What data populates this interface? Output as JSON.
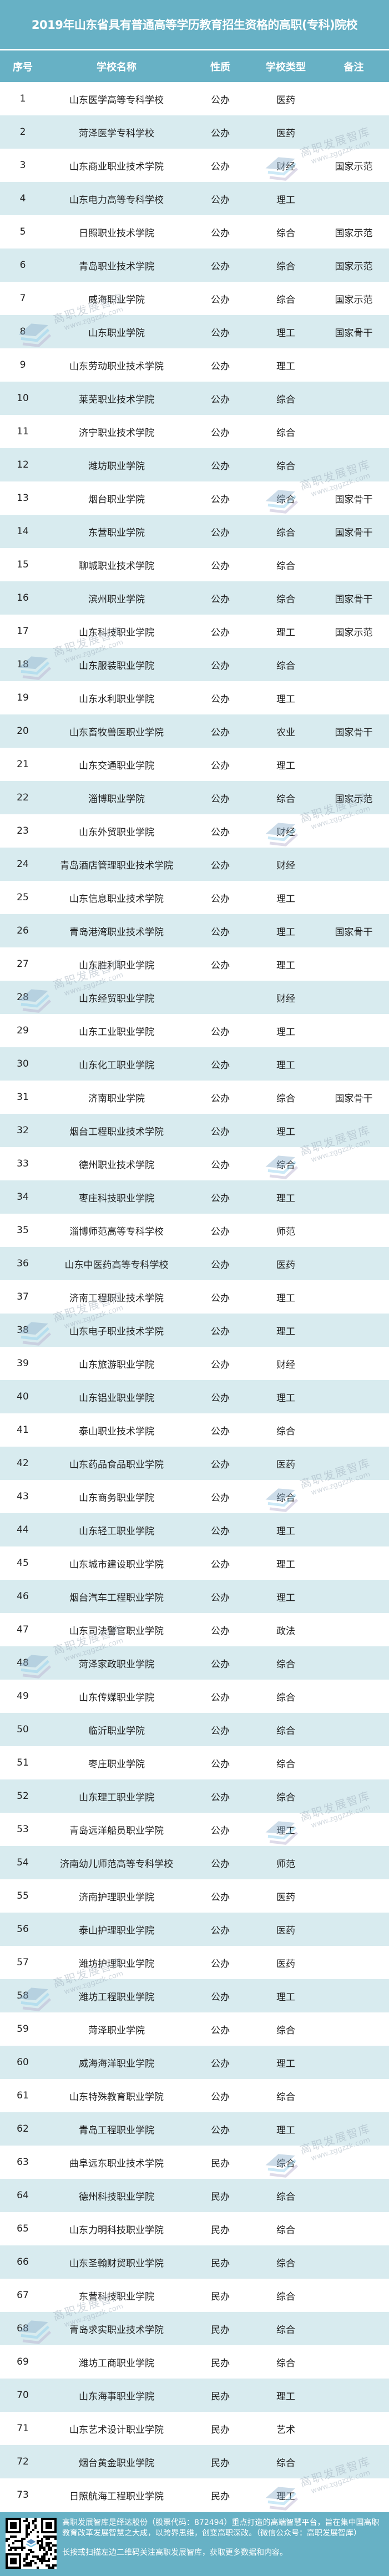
{
  "title": "2019年山东省具有普通高等学历教育招生资格的高职(专科)院校",
  "columns": [
    "序号",
    "学校名称",
    "性质",
    "学校类型",
    "备注"
  ],
  "colors": {
    "header_bg": "#67b1c5",
    "stripe_bg": "#d8ebef",
    "text": "#222222"
  },
  "rows": [
    [
      "1",
      "山东医学高等专科学校",
      "公办",
      "医药",
      ""
    ],
    [
      "2",
      "菏泽医学专科学校",
      "公办",
      "医药",
      ""
    ],
    [
      "3",
      "山东商业职业技术学院",
      "公办",
      "财经",
      "国家示范"
    ],
    [
      "4",
      "山东电力高等专科学校",
      "公办",
      "理工",
      ""
    ],
    [
      "5",
      "日照职业技术学院",
      "公办",
      "综合",
      "国家示范"
    ],
    [
      "6",
      "青岛职业技术学院",
      "公办",
      "综合",
      "国家示范"
    ],
    [
      "7",
      "威海职业学院",
      "公办",
      "综合",
      "国家示范"
    ],
    [
      "8",
      "山东职业学院",
      "公办",
      "理工",
      "国家骨干"
    ],
    [
      "9",
      "山东劳动职业技术学院",
      "公办",
      "理工",
      ""
    ],
    [
      "10",
      "莱芜职业技术学院",
      "公办",
      "综合",
      ""
    ],
    [
      "11",
      "济宁职业技术学院",
      "公办",
      "综合",
      ""
    ],
    [
      "12",
      "潍坊职业学院",
      "公办",
      "综合",
      ""
    ],
    [
      "13",
      "烟台职业学院",
      "公办",
      "综合",
      "国家骨干"
    ],
    [
      "14",
      "东营职业学院",
      "公办",
      "综合",
      "国家骨干"
    ],
    [
      "15",
      "聊城职业技术学院",
      "公办",
      "综合",
      ""
    ],
    [
      "16",
      "滨州职业学院",
      "公办",
      "综合",
      "国家骨干"
    ],
    [
      "17",
      "山东科技职业学院",
      "公办",
      "理工",
      "国家示范"
    ],
    [
      "18",
      "山东服装职业学院",
      "公办",
      "综合",
      ""
    ],
    [
      "19",
      "山东水利职业学院",
      "公办",
      "理工",
      ""
    ],
    [
      "20",
      "山东畜牧兽医职业学院",
      "公办",
      "农业",
      "国家骨干"
    ],
    [
      "21",
      "山东交通职业学院",
      "公办",
      "理工",
      ""
    ],
    [
      "22",
      "淄博职业学院",
      "公办",
      "综合",
      "国家示范"
    ],
    [
      "23",
      "山东外贸职业学院",
      "公办",
      "财经",
      ""
    ],
    [
      "24",
      "青岛酒店管理职业技术学院",
      "公办",
      "财经",
      ""
    ],
    [
      "25",
      "山东信息职业技术学院",
      "公办",
      "理工",
      ""
    ],
    [
      "26",
      "青岛港湾职业技术学院",
      "公办",
      "理工",
      "国家骨干"
    ],
    [
      "27",
      "山东胜利职业学院",
      "公办",
      "理工",
      ""
    ],
    [
      "28",
      "山东经贸职业学院",
      "",
      "财经",
      ""
    ],
    [
      "29",
      "山东工业职业学院",
      "公办",
      "理工",
      ""
    ],
    [
      "30",
      "山东化工职业学院",
      "公办",
      "理工",
      ""
    ],
    [
      "31",
      "济南职业学院",
      "公办",
      "综合",
      "国家骨干"
    ],
    [
      "32",
      "烟台工程职业技术学院",
      "公办",
      "理工",
      ""
    ],
    [
      "33",
      "德州职业技术学院",
      "公办",
      "综合",
      ""
    ],
    [
      "34",
      "枣庄科技职业学院",
      "公办",
      "理工",
      ""
    ],
    [
      "35",
      "淄博师范高等专科学校",
      "公办",
      "师范",
      ""
    ],
    [
      "36",
      "山东中医药高等专科学校",
      "公办",
      "医药",
      ""
    ],
    [
      "37",
      "济南工程职业技术学院",
      "公办",
      "理工",
      ""
    ],
    [
      "38",
      "山东电子职业技术学院",
      "公办",
      "理工",
      ""
    ],
    [
      "39",
      "山东旅游职业学院",
      "公办",
      "财经",
      ""
    ],
    [
      "40",
      "山东铝业职业学院",
      "公办",
      "理工",
      ""
    ],
    [
      "41",
      "泰山职业技术学院",
      "公办",
      "综合",
      ""
    ],
    [
      "42",
      "山东药品食品职业学院",
      "公办",
      "医药",
      ""
    ],
    [
      "43",
      "山东商务职业学院",
      "公办",
      "综合",
      ""
    ],
    [
      "44",
      "山东轻工职业学院",
      "公办",
      "理工",
      ""
    ],
    [
      "45",
      "山东城市建设职业学院",
      "公办",
      "理工",
      ""
    ],
    [
      "46",
      "烟台汽车工程职业学院",
      "公办",
      "理工",
      ""
    ],
    [
      "47",
      "山东司法警官职业学院",
      "公办",
      "政法",
      ""
    ],
    [
      "48",
      "菏泽家政职业学院",
      "公办",
      "综合",
      ""
    ],
    [
      "49",
      "山东传媒职业学院",
      "公办",
      "综合",
      ""
    ],
    [
      "50",
      "临沂职业学院",
      "公办",
      "综合",
      ""
    ],
    [
      "51",
      "枣庄职业学院",
      "公办",
      "综合",
      ""
    ],
    [
      "52",
      "山东理工职业学院",
      "公办",
      "综合",
      ""
    ],
    [
      "53",
      "青岛远洋船员职业学院",
      "公办",
      "理工",
      ""
    ],
    [
      "54",
      "济南幼儿师范高等专科学校",
      "公办",
      "师范",
      ""
    ],
    [
      "55",
      "济南护理职业学院",
      "公办",
      "医药",
      ""
    ],
    [
      "56",
      "泰山护理职业学院",
      "公办",
      "医药",
      ""
    ],
    [
      "57",
      "潍坊护理职业学院",
      "公办",
      "医药",
      ""
    ],
    [
      "58",
      "潍坊工程职业学院",
      "公办",
      "理工",
      ""
    ],
    [
      "59",
      "菏泽职业学院",
      "公办",
      "综合",
      ""
    ],
    [
      "60",
      "威海海洋职业学院",
      "公办",
      "理工",
      ""
    ],
    [
      "61",
      "山东特殊教育职业学院",
      "公办",
      "综合",
      ""
    ],
    [
      "62",
      "青岛工程职业学院",
      "公办",
      "理工",
      ""
    ],
    [
      "63",
      "曲阜远东职业技术学院",
      "民办",
      "综合",
      ""
    ],
    [
      "64",
      "德州科技职业学院",
      "民办",
      "综合",
      ""
    ],
    [
      "65",
      "山东力明科技职业学院",
      "民办",
      "综合",
      ""
    ],
    [
      "66",
      "山东圣翰财贸职业学院",
      "民办",
      "综合",
      ""
    ],
    [
      "67",
      "东营科技职业学院",
      "民办",
      "综合",
      ""
    ],
    [
      "68",
      "青岛求实职业技术学院",
      "民办",
      "综合",
      ""
    ],
    [
      "69",
      "潍坊工商职业学院",
      "民办",
      "综合",
      ""
    ],
    [
      "70",
      "山东海事职业学院",
      "民办",
      "理工",
      ""
    ],
    [
      "71",
      "山东艺术设计职业学院",
      "民办",
      "艺术",
      ""
    ],
    [
      "72",
      "烟台黄金职业学院",
      "民办",
      "综合",
      ""
    ],
    [
      "73",
      "日照航海工程职业学院",
      "民办",
      "理工",
      ""
    ]
  ],
  "watermark": {
    "name": "高职发展智库",
    "url": "www.zggzzk.com"
  },
  "footer": {
    "qr_icon": "qr-code",
    "intro": "高职发展智库是绎达股份（股票代码：872494）重点打造的高端智慧平台，旨在集中国高职教育改革发展智慧之大成，以跨界思维，创变高职深改。（微信公众号：高职发展智库）",
    "cta": "长按或扫描左边二维码关注高职发展智库，获取更多数据和内容。"
  }
}
